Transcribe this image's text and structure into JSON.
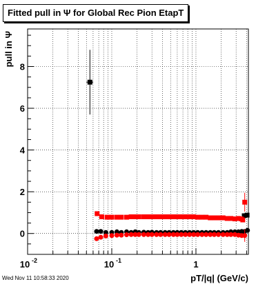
{
  "window": {
    "title": "Fitted pull in  Ψ  for Global Rec Pion EtapT",
    "footer_timestamp": "Wed Nov 11 10:58:33 2020"
  },
  "chart_data": {
    "type": "scatter",
    "title": "Fitted pull in  Ψ  for Global Rec Pion EtapT",
    "xlabel": "pT/|q| (GeV/c)",
    "ylabel": "pull in  Ψ",
    "x_scale": "log",
    "xlim": [
      0.01,
      4.2
    ],
    "ylim": [
      -1,
      9.8
    ],
    "grid": true,
    "x_ticks": [
      {
        "value": 0.01,
        "label": "10",
        "sup": "-2"
      },
      {
        "value": 0.1,
        "label": "10",
        "sup": "-1"
      },
      {
        "value": 1,
        "label": "1",
        "sup": ""
      }
    ],
    "y_ticks": [
      0,
      2,
      4,
      6,
      8
    ],
    "series": [
      {
        "color": "#000000",
        "marker": "square",
        "points": [
          {
            "x": 0.055,
            "y": 7.25,
            "yerr": 1.55,
            "xerr": 0.005
          }
        ]
      },
      {
        "color": "#000000",
        "marker": "circle",
        "points": [
          {
            "x": 0.066,
            "y": 0.1
          },
          {
            "x": 0.074,
            "y": 0.1
          },
          {
            "x": 0.085,
            "y": 0.05
          },
          {
            "x": 0.1,
            "y": 0.05
          },
          {
            "x": 0.115,
            "y": 0.08
          },
          {
            "x": 0.13,
            "y": 0.05
          },
          {
            "x": 0.15,
            "y": 0.08
          },
          {
            "x": 0.17,
            "y": 0.05
          },
          {
            "x": 0.19,
            "y": 0.08
          },
          {
            "x": 0.21,
            "y": 0.05
          },
          {
            "x": 0.24,
            "y": 0.06
          },
          {
            "x": 0.27,
            "y": 0.05
          },
          {
            "x": 0.3,
            "y": 0.06
          },
          {
            "x": 0.34,
            "y": 0.05
          },
          {
            "x": 0.38,
            "y": 0.05
          },
          {
            "x": 0.43,
            "y": 0.05
          },
          {
            "x": 0.48,
            "y": 0.05
          },
          {
            "x": 0.54,
            "y": 0.05
          },
          {
            "x": 0.6,
            "y": 0.05
          },
          {
            "x": 0.67,
            "y": 0.05
          },
          {
            "x": 0.75,
            "y": 0.05
          },
          {
            "x": 0.84,
            "y": 0.05
          },
          {
            "x": 0.94,
            "y": 0.05
          },
          {
            "x": 1.05,
            "y": 0.05
          },
          {
            "x": 1.18,
            "y": 0.05
          },
          {
            "x": 1.32,
            "y": 0.05
          },
          {
            "x": 1.48,
            "y": 0.05
          },
          {
            "x": 1.65,
            "y": 0.05
          },
          {
            "x": 1.85,
            "y": 0.05
          },
          {
            "x": 2.1,
            "y": 0.05
          },
          {
            "x": 2.35,
            "y": 0.05
          },
          {
            "x": 2.6,
            "y": 0.08
          },
          {
            "x": 2.9,
            "y": 0.08
          },
          {
            "x": 3.2,
            "y": 0.08
          },
          {
            "x": 3.5,
            "y": 0.1
          },
          {
            "x": 3.8,
            "y": 0.1
          },
          {
            "x": 4.1,
            "y": 0.15
          }
        ]
      },
      {
        "color": "#000000",
        "marker": "square",
        "points": [
          {
            "x": 3.75,
            "y": 0.85
          },
          {
            "x": 4.05,
            "y": 0.88
          }
        ]
      },
      {
        "color": "#ff0000",
        "marker": "square",
        "points": [
          {
            "x": 0.067,
            "y": 0.95
          },
          {
            "x": 0.076,
            "y": 0.8
          },
          {
            "x": 0.088,
            "y": 0.78
          },
          {
            "x": 0.1,
            "y": 0.78
          },
          {
            "x": 0.115,
            "y": 0.78
          },
          {
            "x": 0.13,
            "y": 0.78
          },
          {
            "x": 0.15,
            "y": 0.78
          },
          {
            "x": 0.17,
            "y": 0.8
          },
          {
            "x": 0.19,
            "y": 0.8
          },
          {
            "x": 0.21,
            "y": 0.8
          },
          {
            "x": 0.24,
            "y": 0.8
          },
          {
            "x": 0.27,
            "y": 0.8
          },
          {
            "x": 0.3,
            "y": 0.8
          },
          {
            "x": 0.34,
            "y": 0.8
          },
          {
            "x": 0.38,
            "y": 0.8
          },
          {
            "x": 0.43,
            "y": 0.8
          },
          {
            "x": 0.48,
            "y": 0.8
          },
          {
            "x": 0.54,
            "y": 0.8
          },
          {
            "x": 0.6,
            "y": 0.8
          },
          {
            "x": 0.67,
            "y": 0.8
          },
          {
            "x": 0.75,
            "y": 0.8
          },
          {
            "x": 0.84,
            "y": 0.8
          },
          {
            "x": 0.94,
            "y": 0.8
          },
          {
            "x": 1.05,
            "y": 0.78
          },
          {
            "x": 1.18,
            "y": 0.78
          },
          {
            "x": 1.32,
            "y": 0.78
          },
          {
            "x": 1.48,
            "y": 0.75
          },
          {
            "x": 1.65,
            "y": 0.75
          },
          {
            "x": 1.85,
            "y": 0.75
          },
          {
            "x": 2.1,
            "y": 0.75
          },
          {
            "x": 2.35,
            "y": 0.72
          },
          {
            "x": 2.6,
            "y": 0.72
          },
          {
            "x": 2.9,
            "y": 0.7
          },
          {
            "x": 3.2,
            "y": 0.72
          },
          {
            "x": 3.45,
            "y": 0.7
          },
          {
            "x": 3.6,
            "y": 0.65
          },
          {
            "x": 3.8,
            "y": 1.5,
            "yerr": 0.45
          }
        ]
      },
      {
        "color": "#ff0000",
        "marker": "circle",
        "points": [
          {
            "x": 0.066,
            "y": -0.25
          },
          {
            "x": 0.074,
            "y": -0.18
          },
          {
            "x": 0.085,
            "y": -0.12
          },
          {
            "x": 0.1,
            "y": -0.1
          },
          {
            "x": 0.115,
            "y": -0.08
          },
          {
            "x": 0.13,
            "y": -0.08
          },
          {
            "x": 0.15,
            "y": -0.06
          },
          {
            "x": 0.17,
            "y": -0.05
          },
          {
            "x": 0.19,
            "y": -0.05
          },
          {
            "x": 0.21,
            "y": -0.05
          },
          {
            "x": 0.24,
            "y": -0.05
          },
          {
            "x": 0.27,
            "y": -0.05
          },
          {
            "x": 0.3,
            "y": -0.05
          },
          {
            "x": 0.34,
            "y": -0.05
          },
          {
            "x": 0.38,
            "y": -0.05
          },
          {
            "x": 0.43,
            "y": -0.05
          },
          {
            "x": 0.48,
            "y": -0.05
          },
          {
            "x": 0.54,
            "y": -0.05
          },
          {
            "x": 0.6,
            "y": -0.05
          },
          {
            "x": 0.67,
            "y": -0.05
          },
          {
            "x": 0.75,
            "y": -0.05
          },
          {
            "x": 0.84,
            "y": -0.05
          },
          {
            "x": 0.94,
            "y": -0.05
          },
          {
            "x": 1.05,
            "y": -0.05
          },
          {
            "x": 1.18,
            "y": -0.05
          },
          {
            "x": 1.32,
            "y": -0.05
          },
          {
            "x": 1.48,
            "y": -0.05
          },
          {
            "x": 1.65,
            "y": -0.05
          },
          {
            "x": 1.85,
            "y": -0.05
          },
          {
            "x": 2.1,
            "y": -0.05
          },
          {
            "x": 2.35,
            "y": -0.05
          },
          {
            "x": 2.6,
            "y": -0.05
          },
          {
            "x": 2.9,
            "y": -0.05
          },
          {
            "x": 3.2,
            "y": -0.08
          },
          {
            "x": 3.5,
            "y": -0.1
          },
          {
            "x": 3.8,
            "y": -0.1,
            "yerr": 0.3
          }
        ]
      }
    ]
  }
}
